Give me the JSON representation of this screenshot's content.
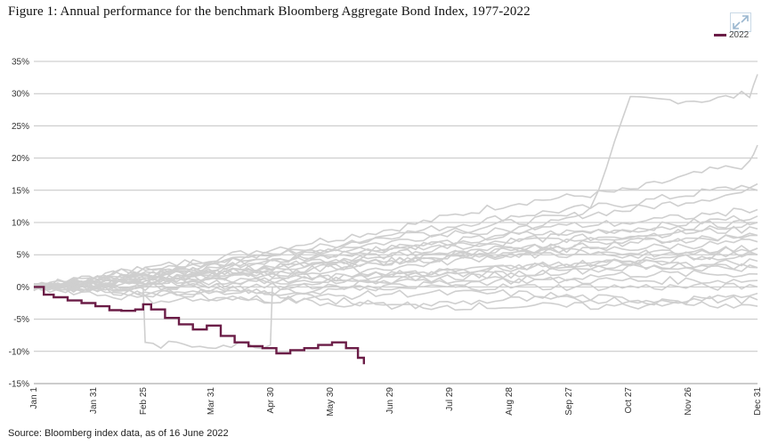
{
  "figure": {
    "title": "Figure 1: Annual performance for the benchmark Bloomberg Aggregate Bond Index, 1977-2022",
    "source": "Source: Bloomberg index data, as of 16 June 2022"
  },
  "chart_data": {
    "type": "line",
    "title": "Figure 1: Annual performance for the benchmark Bloomberg Aggregate Bond Index, 1977-2022",
    "xlabel": "",
    "ylabel": "",
    "ylim": [
      -15,
      35
    ],
    "xlim": [
      "Jan 1",
      "Dec 31"
    ],
    "y_ticks": [
      "35%",
      "30%",
      "25%",
      "20%",
      "15%",
      "10%",
      "5%",
      "0%",
      "-5%",
      "-10%",
      "-15%"
    ],
    "x_ticks": [
      "Jan 1",
      "Jan 31",
      "Feb 25",
      "Mar 31",
      "Apr 30",
      "May 30",
      "Jun 29",
      "Jul 29",
      "Aug 28",
      "Sep 27",
      "Oct 27",
      "Nov 26",
      "Dec 31"
    ],
    "x_tick_days": [
      0,
      30,
      55,
      89,
      119,
      149,
      179,
      209,
      239,
      269,
      299,
      329,
      364
    ],
    "grid": "horizontal",
    "legend_position": "top-right",
    "highlight_series": {
      "name": "2022",
      "color": "#6b1d47",
      "x": [
        "Jan 1",
        "Jan 6",
        "Jan 11",
        "Jan 18",
        "Jan 25",
        "Feb 1",
        "Feb 8",
        "Feb 14",
        "Feb 21",
        "Feb 25",
        "Mar 1",
        "Mar 8",
        "Mar 15",
        "Mar 22",
        "Mar 29",
        "Apr 5",
        "Apr 12",
        "Apr 19",
        "Apr 26",
        "May 3",
        "May 10",
        "May 17",
        "May 24",
        "May 31",
        "Jun 7",
        "Jun 13",
        "Jun 16"
      ],
      "values": [
        0,
        -1.2,
        -1.6,
        -2.1,
        -2.5,
        -3.0,
        -3.6,
        -3.7,
        -3.5,
        -2.7,
        -3.5,
        -4.8,
        -5.8,
        -6.6,
        -6.0,
        -7.6,
        -8.6,
        -9.2,
        -9.5,
        -10.3,
        -9.8,
        -9.5,
        -9.0,
        -8.6,
        -9.5,
        -11.0,
        -12.0
      ]
    },
    "series_color": "#cfcfcf",
    "background_series": [
      {
        "x": [
          0,
          60,
          120,
          180,
          240,
          280,
          300,
          340,
          360,
          364
        ],
        "values": [
          0,
          2,
          4,
          6,
          8,
          12,
          29,
          29,
          30,
          33
        ]
      },
      {
        "x": [
          0,
          60,
          120,
          180,
          240,
          300,
          340,
          360,
          364
        ],
        "values": [
          0,
          3,
          6,
          9,
          13,
          15,
          18,
          19,
          22
        ]
      },
      {
        "x": [
          0,
          60,
          120,
          180,
          240,
          300,
          364
        ],
        "values": [
          0,
          3,
          5,
          8,
          11,
          13,
          16
        ]
      },
      {
        "x": [
          0,
          60,
          120,
          180,
          240,
          300,
          364
        ],
        "values": [
          0,
          2,
          5,
          7,
          10,
          12,
          15
        ]
      },
      {
        "x": [
          0,
          60,
          120,
          180,
          240,
          300,
          364
        ],
        "values": [
          0,
          2,
          4,
          6,
          8,
          9,
          11
        ]
      },
      {
        "x": [
          0,
          60,
          120,
          180,
          240,
          300,
          364
        ],
        "values": [
          0,
          1,
          3,
          5,
          7,
          8,
          10
        ]
      },
      {
        "x": [
          0,
          60,
          120,
          180,
          240,
          300,
          364
        ],
        "values": [
          0,
          1,
          2,
          4,
          6,
          8,
          9
        ]
      },
      {
        "x": [
          0,
          60,
          120,
          180,
          240,
          300,
          364
        ],
        "values": [
          0,
          1,
          3,
          4,
          5,
          7,
          8
        ]
      },
      {
        "x": [
          0,
          60,
          120,
          180,
          240,
          300,
          364
        ],
        "values": [
          0,
          1,
          2,
          3,
          5,
          6,
          7
        ]
      },
      {
        "x": [
          0,
          60,
          120,
          180,
          240,
          300,
          364
        ],
        "values": [
          0,
          2,
          3,
          4,
          5,
          5,
          6
        ]
      },
      {
        "x": [
          0,
          60,
          120,
          180,
          240,
          300,
          364
        ],
        "values": [
          0,
          1,
          1,
          2,
          3,
          4,
          5
        ]
      },
      {
        "x": [
          0,
          60,
          120,
          180,
          240,
          300,
          364
        ],
        "values": [
          0,
          0,
          1,
          2,
          2,
          3,
          4
        ]
      },
      {
        "x": [
          0,
          60,
          120,
          180,
          240,
          300,
          364
        ],
        "values": [
          0,
          1,
          2,
          1,
          2,
          3,
          3
        ]
      },
      {
        "x": [
          0,
          60,
          120,
          180,
          240,
          300,
          364
        ],
        "values": [
          0,
          0,
          1,
          1,
          1,
          2,
          2
        ]
      },
      {
        "x": [
          0,
          60,
          120,
          180,
          240,
          300,
          364
        ],
        "values": [
          0,
          -1,
          0,
          0,
          1,
          1,
          1
        ]
      },
      {
        "x": [
          0,
          60,
          120,
          180,
          240,
          300,
          364
        ],
        "values": [
          0,
          -1,
          -1,
          0,
          0,
          0,
          0
        ]
      },
      {
        "x": [
          0,
          60,
          120,
          180,
          240,
          300,
          364
        ],
        "values": [
          0,
          -2,
          -2,
          -1,
          -1,
          -2,
          -2
        ]
      },
      {
        "x": [
          0,
          60,
          120,
          180,
          240,
          300,
          364
        ],
        "values": [
          0,
          -1,
          -2,
          -3,
          -2,
          -2,
          -3
        ]
      },
      {
        "x": [
          0,
          55,
          56,
          119,
          120,
          180,
          240,
          300,
          364
        ],
        "values": [
          0,
          0,
          -9,
          -9,
          0,
          2,
          3,
          4,
          5
        ]
      },
      {
        "x": [
          0,
          60,
          120,
          180,
          240,
          300,
          364
        ],
        "values": [
          0,
          3,
          2,
          4,
          6,
          7,
          8
        ]
      },
      {
        "x": [
          0,
          60,
          120,
          180,
          240,
          300,
          364
        ],
        "values": [
          0,
          2,
          5,
          6,
          7,
          9,
          10
        ]
      },
      {
        "x": [
          0,
          60,
          120,
          180,
          240,
          300,
          364
        ],
        "values": [
          0,
          2,
          4,
          8,
          9,
          10,
          12
        ]
      },
      {
        "x": [
          0,
          60,
          120,
          180,
          240,
          300,
          364
        ],
        "values": [
          0,
          1,
          3,
          5,
          6,
          5,
          6
        ]
      },
      {
        "x": [
          0,
          60,
          120,
          180,
          240,
          300,
          364
        ],
        "values": [
          0,
          0,
          -1,
          -3,
          -3,
          -3,
          -1
        ]
      },
      {
        "x": [
          0,
          60,
          120,
          180,
          240,
          300,
          364
        ],
        "values": [
          0,
          1,
          -1,
          1,
          3,
          4,
          3
        ]
      }
    ]
  },
  "legend": {
    "label": "2022",
    "color": "#6b1d47"
  }
}
